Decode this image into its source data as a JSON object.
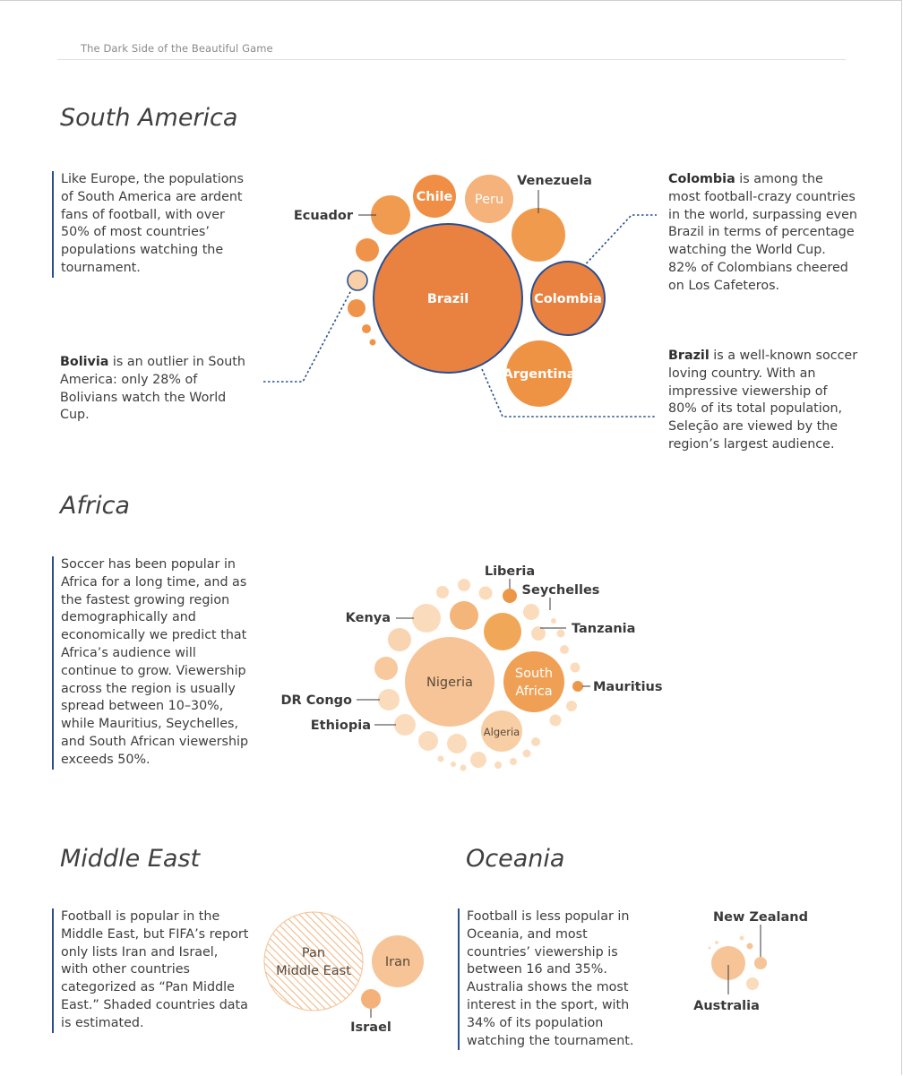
{
  "header": {
    "running_title": "The Dark Side of the Beautiful Game"
  },
  "colors": {
    "dark_orange": "#e98a42",
    "mid_orange": "#f0a055",
    "orange_light": "#f2b06a",
    "peach": "#f6c18e",
    "pale_peach": "#fbdcbd",
    "outline_blue": "#2a4f8f"
  },
  "south_america": {
    "title": "South America",
    "intro": "Like Europe, the populations of South America are ardent fans of football, with over 50% of most countries’ populations watching the tournament.",
    "bolivia_note": {
      "bold": "Bolivia",
      "rest": " is an outlier in South America: only 28% of Bolivians watch the World Cup."
    },
    "colombia_note": {
      "bold": "Colombia",
      "rest": " is among the most football-crazy countries in the world, surpassing even Brazil in terms of percentage watching the World Cup. 82% of Colombians cheered on Los Cafeteros."
    },
    "brazil_note": {
      "bold": "Brazil",
      "rest": " is a well-known soccer loving country. With an impressive viewership of 80% of its total population, Seleção are viewed by the region’s largest audience."
    },
    "labels": {
      "brazil": "Brazil",
      "colombia": "Colombia",
      "argentina": "Argentina",
      "chile": "Chile",
      "peru": "Peru",
      "venezuela": "Venezuela",
      "ecuador": "Ecuador"
    }
  },
  "africa": {
    "title": "Africa",
    "intro": "Soccer has been popular in Africa for a long time, and as the fastest growing region demographically and economically we predict that Africa’s audience will continue to grow. Viewership across the region is usually spread between 10–30%, while Mauritius, Seychelles, and South African viewership exceeds 50%.",
    "labels": {
      "nigeria": "Nigeria",
      "south_africa_line1": "South",
      "south_africa_line2": "Africa",
      "algeria": "Algeria",
      "kenya": "Kenya",
      "liberia": "Liberia",
      "seychelles": "Seychelles",
      "tanzania": "Tanzania",
      "mauritius": "Mauritius",
      "dr_congo": "DR Congo",
      "ethiopia": "Ethiopia"
    }
  },
  "middle_east": {
    "title": "Middle East",
    "intro": "Football is popular in the Middle East, but FIFA’s report only lists Iran and Israel, with other countries categorized as “Pan Middle East.” Shaded countries data is estimated.",
    "labels": {
      "pan_line1": "Pan",
      "pan_line2": "Middle East",
      "iran": "Iran",
      "israel": "Israel"
    }
  },
  "oceania": {
    "title": "Oceania",
    "intro": "Football is less popular in Oceania, and most countries’ viewership is between 16 and 35%. Australia shows the most interest in the sport, with 34% of its population watching the tournament.",
    "labels": {
      "new_zealand": "New Zealand",
      "australia": "Australia"
    }
  }
}
